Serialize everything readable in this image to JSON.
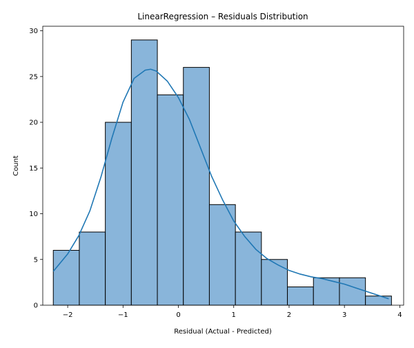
{
  "chart_data": {
    "type": "bar",
    "subtype": "histogram-with-kde",
    "title": "LinearRegression – Residuals Distribution",
    "xlabel": "Residual (Actual - Predicted)",
    "ylabel": "Count",
    "xlim": [
      -2.45,
      4.07
    ],
    "ylim": [
      0,
      30.5
    ],
    "xticks": [
      -2,
      -1,
      0,
      1,
      2,
      3,
      4
    ],
    "xtick_labels": [
      "−2",
      "−1",
      "0",
      "1",
      "2",
      "3",
      "4"
    ],
    "yticks": [
      0,
      5,
      10,
      15,
      20,
      25,
      30
    ],
    "ytick_labels": [
      "0",
      "5",
      "10",
      "15",
      "20",
      "25",
      "30"
    ],
    "bins": [
      {
        "start": -2.26,
        "end": -1.79,
        "count": 6
      },
      {
        "start": -1.79,
        "end": -1.32,
        "count": 8
      },
      {
        "start": -1.32,
        "end": -0.85,
        "count": 20
      },
      {
        "start": -0.85,
        "end": -0.38,
        "count": 29
      },
      {
        "start": -0.38,
        "end": 0.09,
        "count": 23
      },
      {
        "start": 0.09,
        "end": 0.56,
        "count": 26
      },
      {
        "start": 0.56,
        "end": 1.03,
        "count": 11
      },
      {
        "start": 1.03,
        "end": 1.5,
        "count": 8
      },
      {
        "start": 1.5,
        "end": 1.97,
        "count": 5
      },
      {
        "start": 1.97,
        "end": 2.44,
        "count": 2
      },
      {
        "start": 2.44,
        "end": 2.91,
        "count": 3
      },
      {
        "start": 2.91,
        "end": 3.38,
        "count": 3
      },
      {
        "start": 3.38,
        "end": 3.85,
        "count": 1
      }
    ],
    "kde": {
      "x": [
        -2.26,
        -2.0,
        -1.8,
        -1.6,
        -1.4,
        -1.2,
        -1.0,
        -0.8,
        -0.6,
        -0.5,
        -0.4,
        -0.2,
        0.0,
        0.2,
        0.4,
        0.6,
        0.8,
        1.0,
        1.2,
        1.4,
        1.6,
        1.8,
        2.0,
        2.2,
        2.4,
        2.6,
        2.8,
        3.0,
        3.2,
        3.4,
        3.6,
        3.8
      ],
      "y": [
        3.7,
        5.6,
        7.6,
        10.3,
        14.0,
        18.3,
        22.2,
        24.8,
        25.7,
        25.8,
        25.6,
        24.5,
        22.7,
        20.3,
        17.2,
        14.1,
        11.5,
        9.2,
        7.5,
        6.1,
        5.1,
        4.4,
        3.8,
        3.4,
        3.1,
        2.9,
        2.6,
        2.3,
        1.9,
        1.5,
        1.1,
        0.7
      ]
    },
    "colors": {
      "bar_fill": "#89b5da",
      "bar_edge": "#000000",
      "kde_line": "#1f77b4"
    },
    "grid": false,
    "legend": "none"
  }
}
